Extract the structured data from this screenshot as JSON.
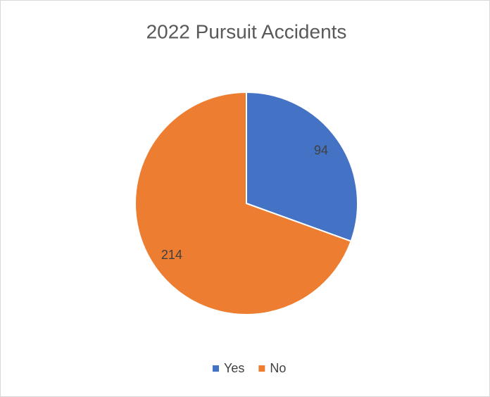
{
  "chart_data": {
    "type": "pie",
    "title": "2022 Pursuit Accidents",
    "categories": [
      "Yes",
      "No"
    ],
    "values": [
      94,
      214
    ],
    "colors": [
      "#4472c4",
      "#ed7d31"
    ],
    "legend": "bottom",
    "data_labels": true
  }
}
